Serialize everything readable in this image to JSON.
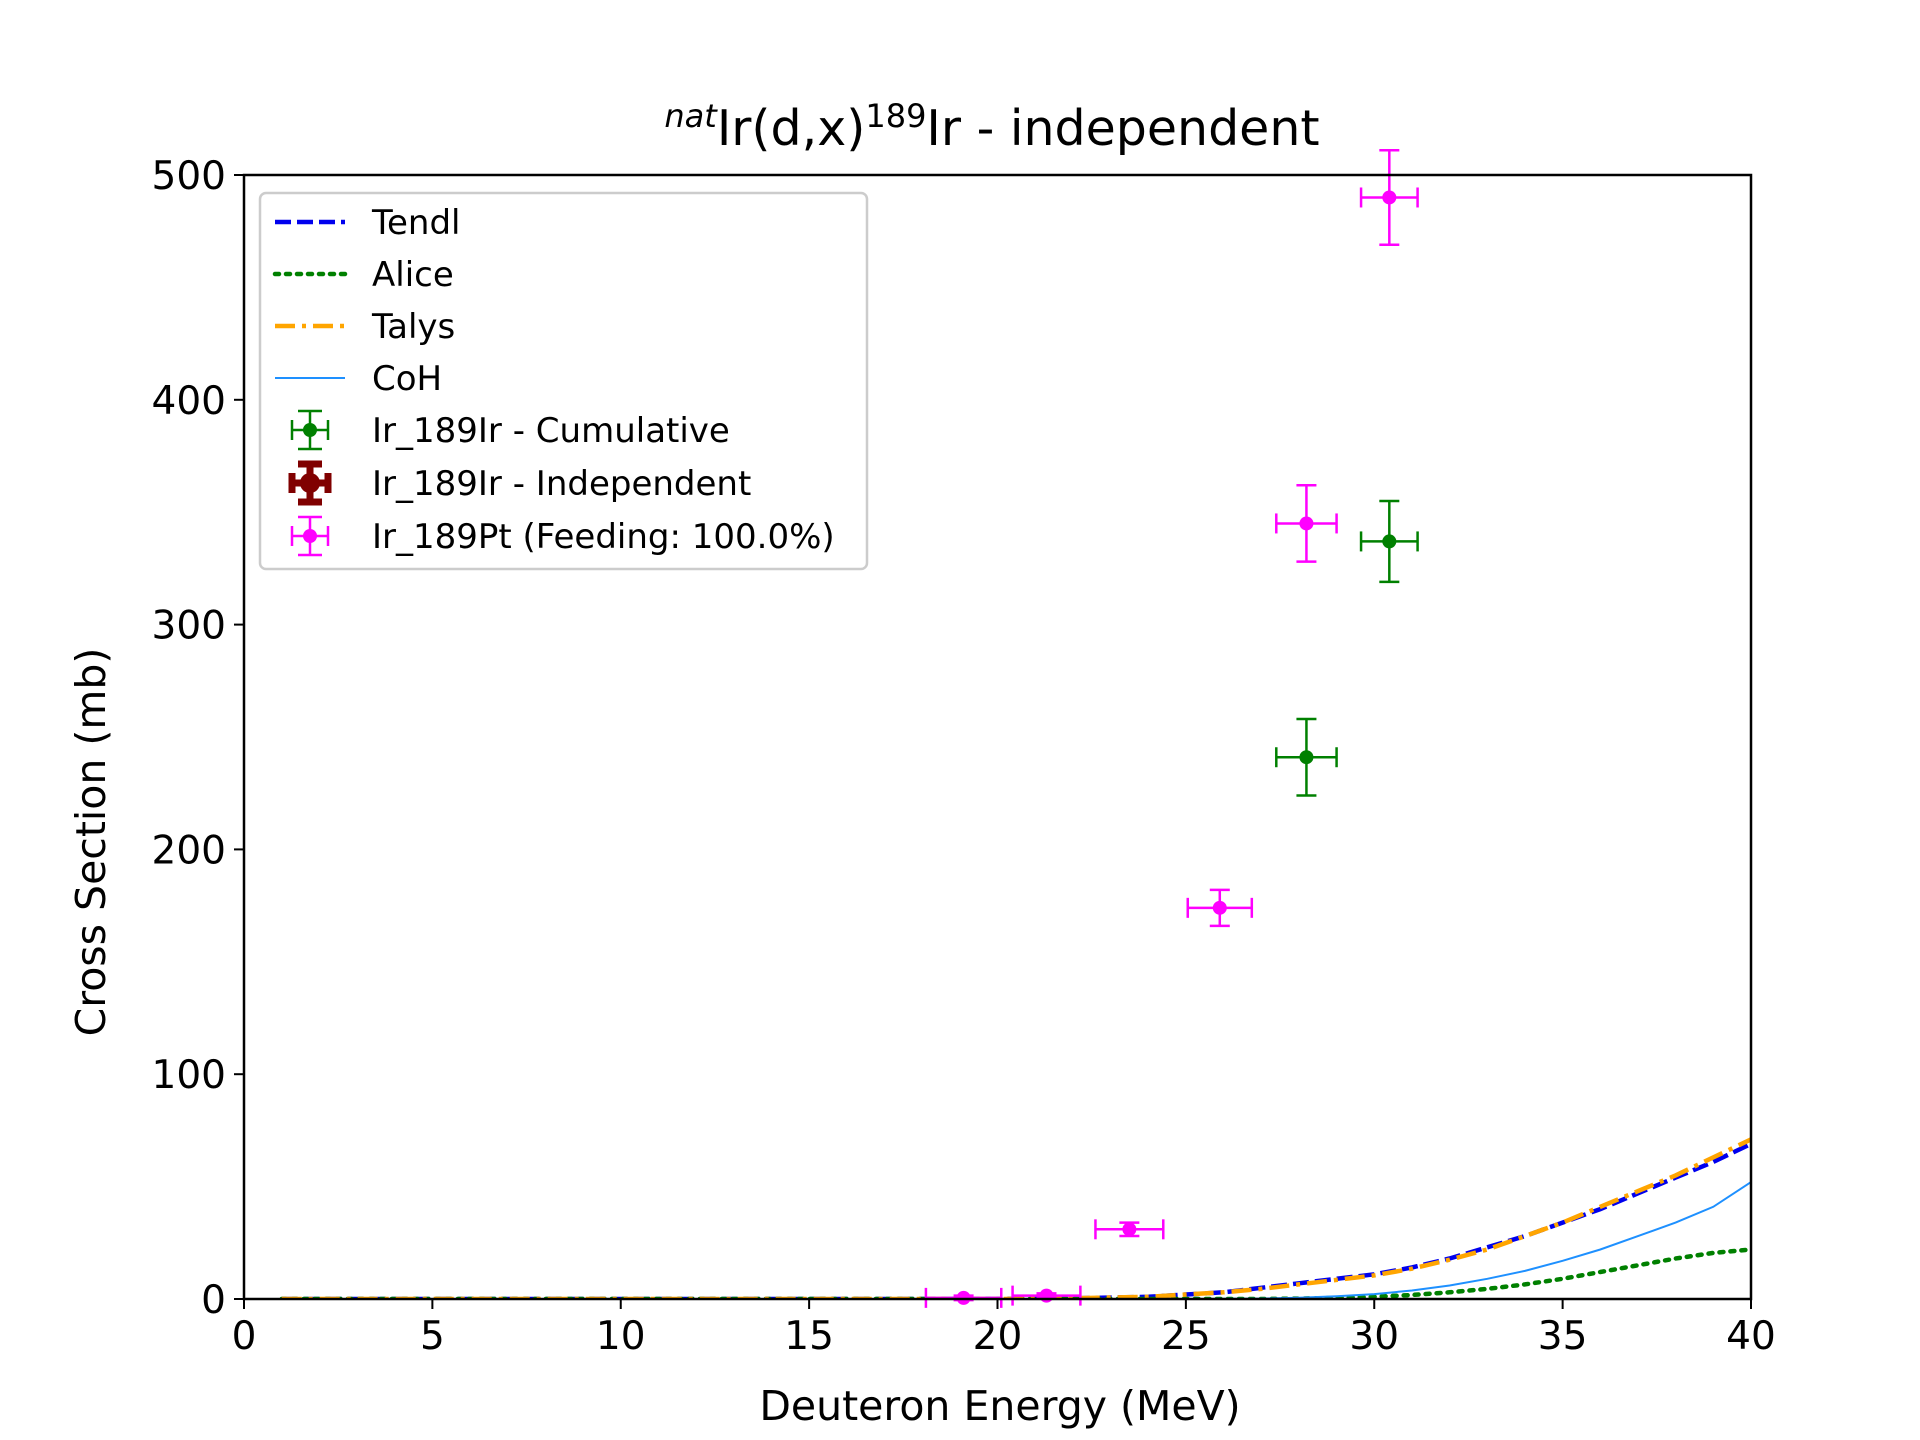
{
  "chart_data": {
    "type": "scatter",
    "title": {
      "prefix_sup": "nat",
      "middle": "Ir(d,x)",
      "mid_sup": "189",
      "suffix": "Ir - independent"
    },
    "xlabel": "Deuteron Energy (MeV)",
    "ylabel": "Cross Section (mb)",
    "xlim": [
      0,
      40
    ],
    "ylim": [
      0,
      500
    ],
    "xticks": [
      0,
      5,
      10,
      15,
      20,
      25,
      30,
      35,
      40
    ],
    "yticks": [
      0,
      100,
      200,
      300,
      400,
      500
    ],
    "grid": false,
    "legend_position": "top-left",
    "curves": [
      {
        "name": "Tendl",
        "color": "#0000ee",
        "style": "dashed",
        "x": [
          1,
          10,
          20,
          22,
          24,
          25,
          26,
          27,
          28,
          29,
          30,
          31,
          32,
          33,
          34,
          35,
          36,
          37,
          38,
          39,
          40
        ],
        "y": [
          0,
          0,
          0,
          0.3,
          1,
          2,
          3,
          5,
          7,
          9,
          11,
          14,
          18,
          23,
          28,
          34,
          40,
          47,
          54,
          61,
          69
        ]
      },
      {
        "name": "Alice",
        "color": "#008000",
        "style": "dotted",
        "x": [
          1,
          10,
          20,
          27,
          28,
          29,
          30,
          31,
          32,
          33,
          34,
          35,
          36,
          37,
          38,
          39,
          40
        ],
        "y": [
          0,
          0,
          0,
          0,
          0.2,
          0.5,
          1,
          1.8,
          3,
          4.5,
          6.5,
          9,
          12,
          15,
          18,
          20.5,
          22
        ]
      },
      {
        "name": "Talys",
        "color": "#ffa500",
        "style": "dashdot",
        "x": [
          1,
          10,
          20,
          22,
          24,
          25,
          26,
          27,
          28,
          29,
          30,
          31,
          32,
          33,
          34,
          35,
          36,
          37,
          38,
          39,
          40
        ],
        "y": [
          0,
          0,
          0,
          0.3,
          1,
          2,
          3,
          4.5,
          6.5,
          8.5,
          10.5,
          13.5,
          17.5,
          22,
          28,
          34,
          41,
          48,
          55,
          63,
          71
        ]
      },
      {
        "name": "CoH",
        "color": "#1e90ff",
        "style": "solid",
        "x": [
          1,
          10,
          20,
          25,
          27,
          28,
          29,
          30,
          31,
          32,
          33,
          34,
          35,
          36,
          37,
          38,
          39,
          40
        ],
        "y": [
          0,
          0,
          0,
          0,
          0.2,
          0.6,
          1.2,
          2.2,
          3.8,
          6,
          9,
          12.5,
          17,
          22,
          28,
          34,
          41,
          52
        ]
      }
    ],
    "series": [
      {
        "name": "Ir_189Ir - Cumulative",
        "color": "#008000",
        "points": [
          {
            "x": 28.2,
            "y": 241,
            "xerr": 0.8,
            "yerr": 17
          },
          {
            "x": 30.4,
            "y": 337,
            "xerr": 0.75,
            "yerr": 18
          }
        ]
      },
      {
        "name": "Ir_189Ir - Independent",
        "color": "#800000",
        "points": []
      },
      {
        "name": "Ir_189Pt (Feeding: 100.0%)",
        "color": "#ff00ff",
        "points": [
          {
            "x": 19.1,
            "y": 0.5,
            "xerr": 1.0,
            "yerr": 1
          },
          {
            "x": 21.3,
            "y": 1.5,
            "xerr": 0.9,
            "yerr": 1
          },
          {
            "x": 23.5,
            "y": 31,
            "xerr": 0.9,
            "yerr": 3
          },
          {
            "x": 25.9,
            "y": 174,
            "xerr": 0.85,
            "yerr": 8
          },
          {
            "x": 28.2,
            "y": 345,
            "xerr": 0.8,
            "yerr": 17
          },
          {
            "x": 30.4,
            "y": 490,
            "xerr": 0.75,
            "yerr": 21
          }
        ]
      }
    ]
  }
}
